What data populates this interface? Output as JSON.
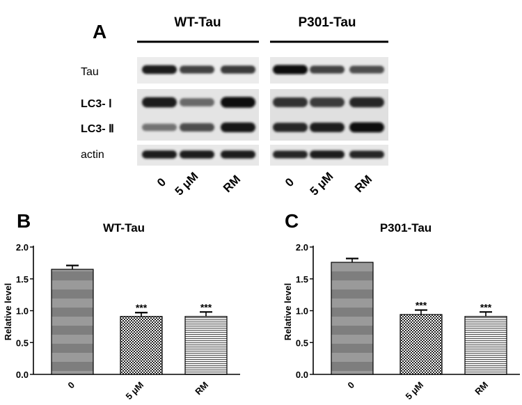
{
  "panel_a": {
    "label": "A",
    "groups": [
      "WT-Tau",
      "P301-Tau"
    ],
    "row_labels": [
      "Tau",
      "LC3- Ⅰ",
      "LC3- Ⅱ",
      "actin"
    ],
    "lane_labels": [
      "0",
      "5 μM",
      "RM"
    ],
    "band_intensity": {
      "WT-Tau": {
        "Tau": [
          0.9,
          0.7,
          0.75
        ],
        "LC3-I": [
          0.9,
          0.5,
          1.0
        ],
        "LC3-II": [
          0.45,
          0.65,
          0.95
        ],
        "actin": [
          0.9,
          0.9,
          0.9
        ]
      },
      "P301-Tau": {
        "Tau": [
          1.0,
          0.7,
          0.65
        ],
        "LC3-I": [
          0.8,
          0.75,
          0.85
        ],
        "LC3-II": [
          0.85,
          0.9,
          1.0
        ],
        "actin": [
          0.85,
          0.9,
          0.85
        ]
      }
    }
  },
  "chart_data": [
    {
      "panel_label": "B",
      "type": "bar",
      "title": "WT-Tau",
      "ylabel": "Relative level",
      "xlabel": "",
      "categories": [
        "0",
        "5 μM",
        "RM"
      ],
      "values": [
        1.65,
        0.91,
        0.91
      ],
      "errors": [
        0.06,
        0.06,
        0.07
      ],
      "significance": [
        "",
        "***",
        "***"
      ],
      "ylim": [
        0,
        2.0
      ],
      "yticks": [
        "0.0",
        "0.5",
        "1.0",
        "1.5",
        "2.0"
      ],
      "grid": false,
      "patterns": [
        "bands",
        "checker",
        "hlines"
      ]
    },
    {
      "panel_label": "C",
      "type": "bar",
      "title": "P301-Tau",
      "ylabel": "Relative level",
      "xlabel": "",
      "categories": [
        "0",
        "5 μM",
        "RM"
      ],
      "values": [
        1.76,
        0.94,
        0.91
      ],
      "errors": [
        0.06,
        0.07,
        0.07
      ],
      "significance": [
        "",
        "***",
        "***"
      ],
      "ylim": [
        0,
        2.0
      ],
      "yticks": [
        "0.0",
        "0.5",
        "1.0",
        "1.5",
        "2.0"
      ],
      "grid": false,
      "patterns": [
        "bands",
        "checker",
        "hlines"
      ]
    }
  ]
}
